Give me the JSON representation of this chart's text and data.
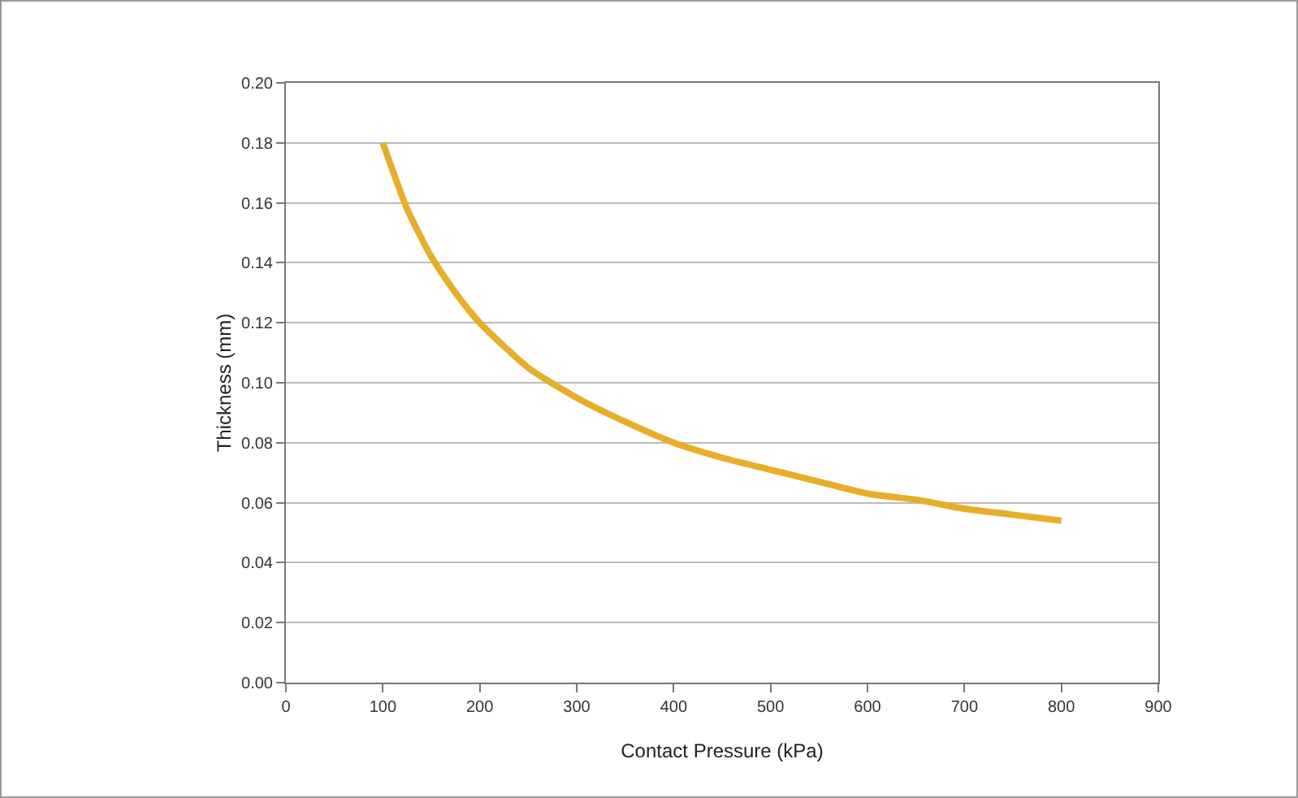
{
  "chart_data": {
    "type": "line",
    "xlabel": "Contact Pressure (kPa)",
    "ylabel": "Thickness (mm)",
    "x": [
      100,
      125,
      150,
      175,
      200,
      250,
      300,
      350,
      400,
      450,
      500,
      550,
      600,
      650,
      700,
      750,
      800
    ],
    "series": [
      {
        "color": "#e8ae2a",
        "values": [
          0.18,
          0.158,
          0.142,
          0.13,
          0.12,
          0.105,
          0.095,
          0.087,
          0.08,
          0.075,
          0.071,
          0.067,
          0.063,
          0.061,
          0.058,
          0.056,
          0.054
        ]
      }
    ],
    "xlim": [
      0,
      900
    ],
    "xticks": [
      0,
      100,
      200,
      300,
      400,
      500,
      600,
      700,
      800,
      900
    ],
    "ylim": [
      0,
      0.2
    ],
    "yticks": [
      {
        "value": 0,
        "label": "0.00"
      },
      {
        "value": 0.02,
        "label": "0.02"
      },
      {
        "value": 0.04,
        "label": "0.04"
      },
      {
        "value": 0.06,
        "label": "0.06"
      },
      {
        "value": 0.08,
        "label": "0.08"
      },
      {
        "value": 0.1,
        "label": "0.10"
      },
      {
        "value": 0.12,
        "label": "0.12"
      },
      {
        "value": 0.14,
        "label": "0.14"
      },
      {
        "value": 0.16,
        "label": "0.16"
      },
      {
        "value": 0.18,
        "label": "0.18"
      },
      {
        "value": 0.2,
        "label": "0.20"
      }
    ],
    "grid": "y",
    "marker": "none",
    "line_style": "solid"
  }
}
